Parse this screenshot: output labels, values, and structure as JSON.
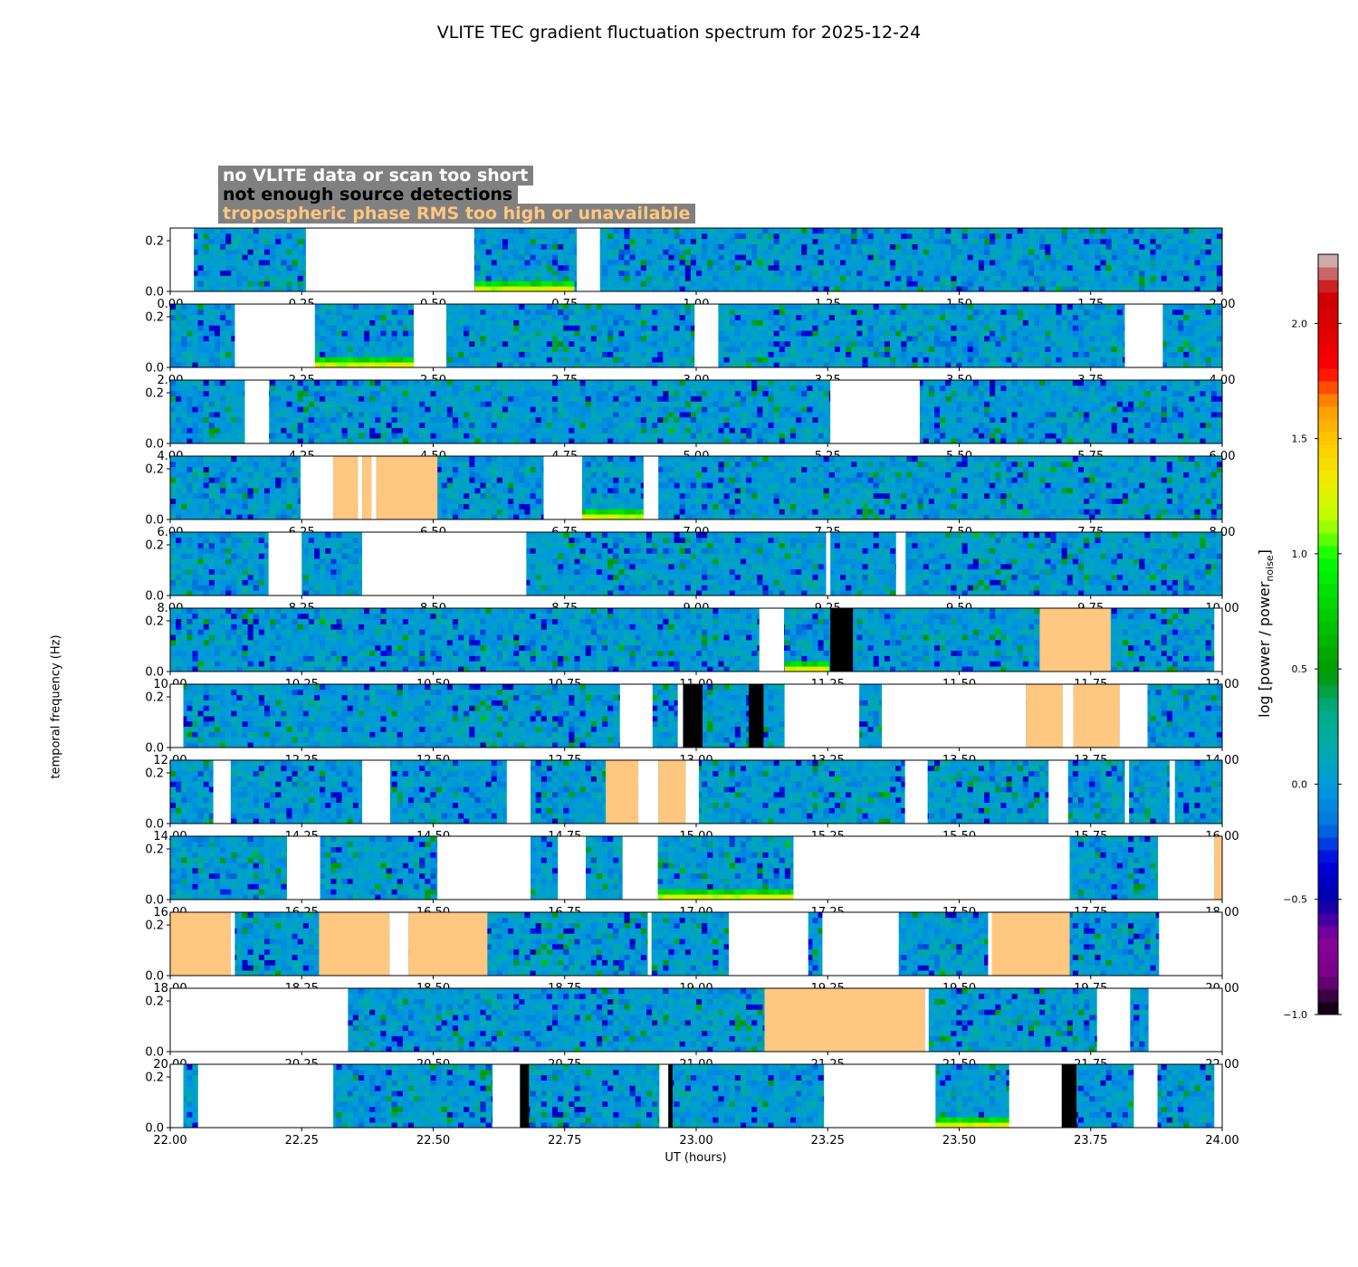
{
  "figure": {
    "title": "VLITE TEC gradient fluctuation spectrum for 2025-12-24",
    "xlabel": "UT (hours)",
    "ylabel": "temporal frequency (Hz)",
    "colorbar_label": "log [power / power",
    "colorbar_label_sub": "noise",
    "colorbar_label_end": "]"
  },
  "legend": [
    {
      "text": "no VLITE data or scan too short",
      "color": "#ffffff",
      "meaning": "white"
    },
    {
      "text": "not enough source detections",
      "color": "#000000",
      "meaning": "black"
    },
    {
      "text": "tropospheric phase RMS too high or unavailable",
      "color": "#ffc77f",
      "meaning": "orange"
    }
  ],
  "colors": {
    "no_data": "#ffffff",
    "no_detections": "#000000",
    "tropo": "#ffc77f",
    "legend_bg": "#808080"
  },
  "chart_data": {
    "type": "heatmap",
    "title": "VLITE TEC gradient fluctuation spectrum for 2025-12-24",
    "xlabel": "UT (hours)",
    "ylabel": "temporal frequency (Hz)",
    "ylim": [
      0.0,
      0.25
    ],
    "yticks": [
      "0.0",
      "0.2"
    ],
    "colormap": "nipy_spectral",
    "color_range": [
      -1.0,
      2.3
    ],
    "colorbar_ticks": [
      "−1.0",
      "−0.5",
      "0.0",
      "0.5",
      "1.0",
      "1.5",
      "2.0"
    ],
    "colorbar_tick_values": [
      -1.0,
      -0.5,
      0.0,
      0.5,
      1.0,
      1.5,
      2.0
    ],
    "panels": [
      {
        "xlim": [
          0,
          2
        ],
        "xticks": [
          "0.00",
          "0.25",
          "0.50",
          "0.75",
          "1.00",
          "1.25",
          "1.50",
          "1.75",
          "2.00"
        ],
        "gaps": [
          [
            0.0,
            0.045,
            "white"
          ],
          [
            0.258,
            0.578,
            "white"
          ],
          [
            0.773,
            0.817,
            "white"
          ]
        ],
        "bright_bottom": [
          [
            0.578,
            0.773
          ]
        ]
      },
      {
        "xlim": [
          2,
          4
        ],
        "xticks": [
          "2.00",
          "2.25",
          "2.50",
          "2.75",
          "3.00",
          "3.25",
          "3.50",
          "3.75",
          "4.00"
        ],
        "gaps": [
          [
            2.123,
            2.275,
            "white"
          ],
          [
            2.463,
            2.525,
            "white"
          ],
          [
            2.997,
            3.042,
            "white"
          ],
          [
            3.815,
            3.887,
            "white"
          ]
        ],
        "bright_bottom": [
          [
            2.275,
            2.463
          ]
        ]
      },
      {
        "xlim": [
          4,
          6
        ],
        "xticks": [
          "4.00",
          "4.25",
          "4.50",
          "4.75",
          "5.00",
          "5.25",
          "5.50",
          "5.75",
          "6.00"
        ],
        "gaps": [
          [
            4.142,
            4.188,
            "white"
          ],
          [
            5.255,
            5.425,
            "white"
          ]
        ],
        "bright_bottom": []
      },
      {
        "xlim": [
          6,
          8
        ],
        "xticks": [
          "6.00",
          "6.25",
          "6.50",
          "6.75",
          "7.00",
          "7.25",
          "7.50",
          "7.75",
          "8.00"
        ],
        "gaps": [
          [
            6.248,
            6.31,
            "white"
          ],
          [
            6.31,
            6.357,
            "tropo"
          ],
          [
            6.357,
            6.365,
            "white"
          ],
          [
            6.365,
            6.383,
            "tropo"
          ],
          [
            6.383,
            6.392,
            "white"
          ],
          [
            6.392,
            6.508,
            "tropo"
          ],
          [
            6.71,
            6.783,
            "white"
          ],
          [
            6.9,
            6.928,
            "white"
          ]
        ],
        "bright_bottom": [
          [
            6.783,
            6.9
          ]
        ]
      },
      {
        "xlim": [
          8,
          10
        ],
        "xticks": [
          "8.00",
          "8.25",
          "8.50",
          "8.75",
          "9.00",
          "9.25",
          "9.50",
          "9.75",
          "10.00"
        ],
        "gaps": [
          [
            8.187,
            8.25,
            "white"
          ],
          [
            8.365,
            8.677,
            "white"
          ],
          [
            9.247,
            9.255,
            "white"
          ],
          [
            9.38,
            9.398,
            "white"
          ]
        ],
        "bright_bottom": []
      },
      {
        "xlim": [
          10,
          12
        ],
        "xticks": [
          "10.00",
          "10.25",
          "10.50",
          "10.75",
          "11.00",
          "11.25",
          "11.50",
          "11.75",
          "12.00"
        ],
        "gaps": [
          [
            11.12,
            11.167,
            "white"
          ],
          [
            11.255,
            11.298,
            "no_detections"
          ],
          [
            11.653,
            11.788,
            "tropo"
          ],
          [
            11.985,
            12.0,
            "white"
          ]
        ],
        "bright_bottom": [
          [
            11.167,
            11.255
          ]
        ]
      },
      {
        "xlim": [
          12,
          14
        ],
        "xticks": [
          "12.00",
          "12.25",
          "12.50",
          "12.75",
          "13.00",
          "13.25",
          "13.50",
          "13.75",
          "14.00"
        ],
        "gaps": [
          [
            12.0,
            12.025,
            "white"
          ],
          [
            12.855,
            12.917,
            "white"
          ],
          [
            12.965,
            12.975,
            "white"
          ],
          [
            12.975,
            13.012,
            "no_detections"
          ],
          [
            13.1,
            13.128,
            "no_detections"
          ],
          [
            13.168,
            13.31,
            "white"
          ],
          [
            13.353,
            13.627,
            "white"
          ],
          [
            13.627,
            13.697,
            "tropo"
          ],
          [
            13.697,
            13.717,
            "white"
          ],
          [
            13.717,
            13.805,
            "tropo"
          ],
          [
            13.805,
            13.858,
            "white"
          ]
        ],
        "bright_bottom": []
      },
      {
        "xlim": [
          14,
          16
        ],
        "xticks": [
          "14.00",
          "14.25",
          "14.50",
          "14.75",
          "15.00",
          "15.25",
          "15.50",
          "15.75",
          "16.00"
        ],
        "gaps": [
          [
            14.082,
            14.115,
            "white"
          ],
          [
            14.365,
            14.418,
            "white"
          ],
          [
            14.64,
            14.685,
            "white"
          ],
          [
            14.828,
            14.89,
            "tropo"
          ],
          [
            14.89,
            14.928,
            "white"
          ],
          [
            14.928,
            14.98,
            "tropo"
          ],
          [
            14.98,
            15.005,
            "white"
          ],
          [
            15.397,
            15.44,
            "white"
          ],
          [
            15.67,
            15.707,
            "white"
          ],
          [
            15.815,
            15.823,
            "white"
          ],
          [
            15.9,
            15.91,
            "white"
          ]
        ],
        "bright_bottom": []
      },
      {
        "xlim": [
          16,
          18
        ],
        "xticks": [
          "16.00",
          "16.25",
          "16.50",
          "16.75",
          "17.00",
          "17.25",
          "17.50",
          "17.75",
          "18.00"
        ],
        "gaps": [
          [
            16.222,
            16.285,
            "white"
          ],
          [
            16.508,
            16.685,
            "white"
          ],
          [
            16.737,
            16.79,
            "white"
          ],
          [
            16.86,
            16.927,
            "white"
          ],
          [
            17.185,
            17.71,
            "white"
          ],
          [
            17.878,
            17.985,
            "white"
          ],
          [
            17.985,
            18.0,
            "tropo"
          ]
        ],
        "bright_bottom": [
          [
            16.927,
            17.185
          ]
        ]
      },
      {
        "xlim": [
          18,
          20
        ],
        "xticks": [
          "18.00",
          "18.25",
          "18.50",
          "18.75",
          "19.00",
          "19.25",
          "19.50",
          "19.75",
          "20.00"
        ],
        "gaps": [
          [
            18.0,
            18.115,
            "tropo"
          ],
          [
            18.115,
            18.123,
            "white"
          ],
          [
            18.283,
            18.417,
            "tropo"
          ],
          [
            18.417,
            18.453,
            "white"
          ],
          [
            18.453,
            18.603,
            "tropo"
          ],
          [
            18.908,
            18.915,
            "white"
          ],
          [
            19.062,
            19.213,
            "white"
          ],
          [
            19.24,
            19.385,
            "white"
          ],
          [
            19.555,
            19.562,
            "white"
          ],
          [
            19.562,
            19.71,
            "tropo"
          ],
          [
            19.88,
            20.0,
            "white"
          ]
        ],
        "bright_bottom": []
      },
      {
        "xlim": [
          20,
          22
        ],
        "xticks": [
          "20.00",
          "20.25",
          "20.50",
          "20.75",
          "21.00",
          "21.25",
          "21.50",
          "21.75",
          "22.00"
        ],
        "gaps": [
          [
            20.0,
            20.338,
            "white"
          ],
          [
            21.13,
            21.435,
            "tropo"
          ],
          [
            21.435,
            21.442,
            "white"
          ],
          [
            21.762,
            21.825,
            "white"
          ],
          [
            21.86,
            22.0,
            "white"
          ]
        ],
        "bright_bottom": []
      },
      {
        "xlim": [
          22,
          24
        ],
        "xticks": [
          "22.00",
          "22.25",
          "22.50",
          "22.75",
          "23.00",
          "23.25",
          "23.50",
          "23.75",
          "24.00"
        ],
        "gaps": [
          [
            22.0,
            22.025,
            "white"
          ],
          [
            22.053,
            22.31,
            "white"
          ],
          [
            22.613,
            22.665,
            "white"
          ],
          [
            22.665,
            22.682,
            "no_detections"
          ],
          [
            22.93,
            22.947,
            "white"
          ],
          [
            22.947,
            22.955,
            "no_detections"
          ],
          [
            23.243,
            23.455,
            "white"
          ],
          [
            23.595,
            23.695,
            "white"
          ],
          [
            23.695,
            23.723,
            "no_detections"
          ],
          [
            23.832,
            23.877,
            "white"
          ],
          [
            23.985,
            24.0,
            "white"
          ]
        ],
        "bright_bottom": [
          [
            23.455,
            23.595
          ]
        ]
      }
    ]
  }
}
